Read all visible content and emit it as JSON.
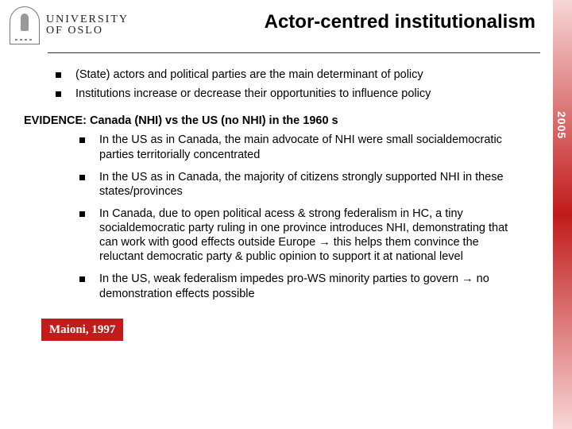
{
  "side": {
    "year": "2005",
    "stripe_color": "#c11b1b"
  },
  "university": {
    "line1": "UNIVERSITY",
    "line2": "OF OSLO"
  },
  "title": "Actor-centred institutionalism",
  "top_points": [
    "(State) actors and political parties are the main determinant of policy",
    "Institutions increase or decrease their opportunities to influence policy"
  ],
  "evidence_heading": "EVIDENCE: Canada (NHI) vs the US (no NHI) in the 1960 s",
  "sub_points": [
    "In the US as in Canada, the main advocate of NHI were small socialdemocratic parties territorially concentrated",
    "In the US as in Canada, the majority of citizens strongly supported NHI in these states/provinces",
    "In Canada, due to open political acess & strong federalism in HC, a tiny socialdemocratic party ruling in one province introduces NHI, demonstrating that can work with good effects outside Europe → this helps them convince the reluctant democratic party & public opinion to support it at national level",
    "In the US, weak federalism impedes pro-WS minority parties to govern → no demonstration effects possible"
  ],
  "citation": "Maioni, 1997",
  "colors": {
    "text": "#000000",
    "accent": "#c11b1b",
    "divider": "#333333",
    "background": "#ffffff"
  },
  "typography": {
    "title_fontsize_pt": 18,
    "body_fontsize_pt": 11,
    "citation_fontsize_pt": 11,
    "wordmark_fontsize_pt": 10
  }
}
